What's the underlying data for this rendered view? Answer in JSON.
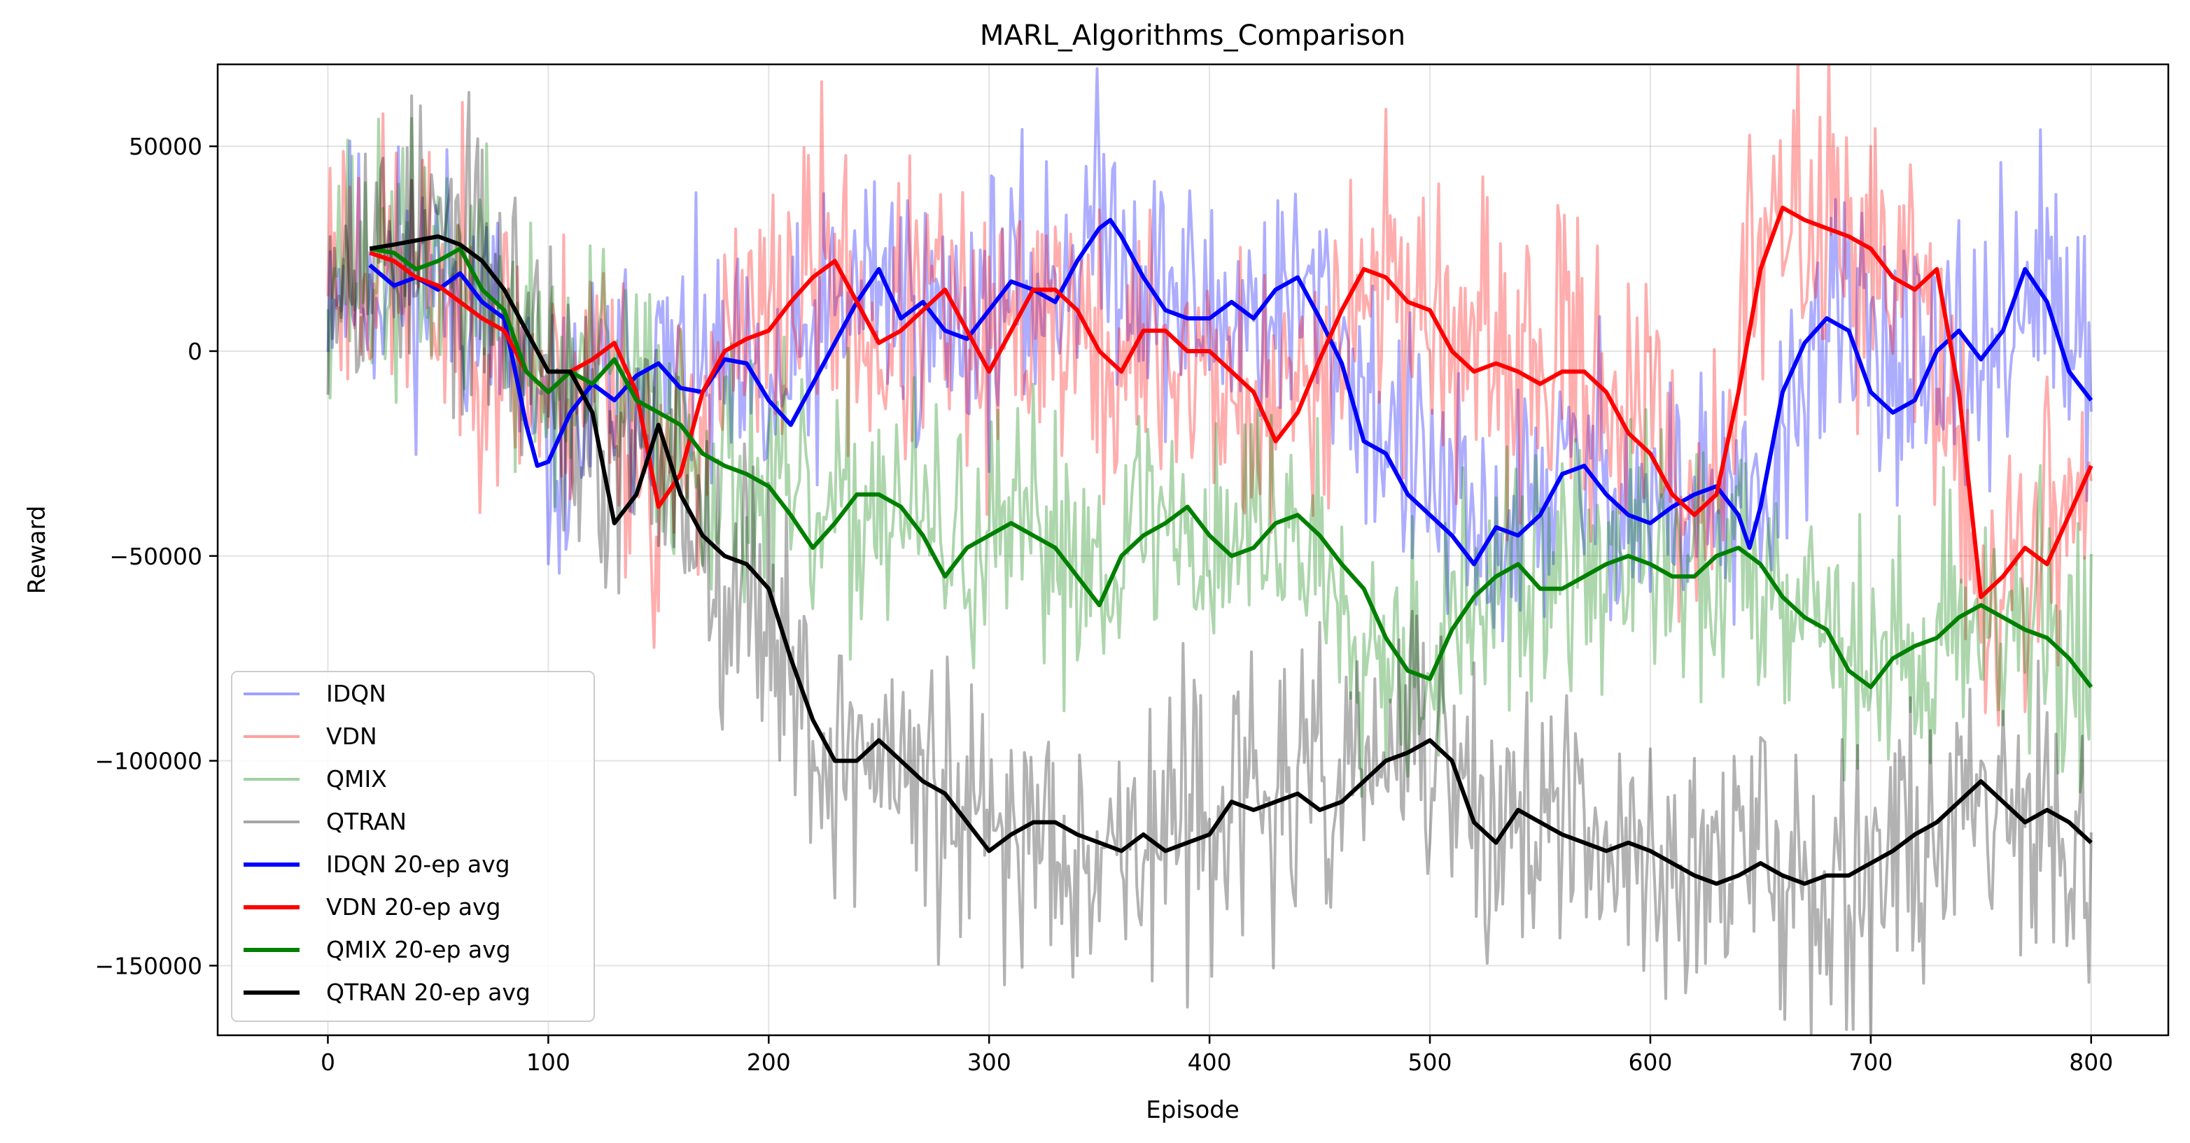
{
  "chart_data": {
    "type": "line",
    "title": "MARL_Algorithms_Comparison",
    "xlabel": "Episode",
    "ylabel": "Reward",
    "xlim": [
      -50,
      835
    ],
    "ylim": [
      -167000,
      70000
    ],
    "xticks": [
      0,
      100,
      200,
      300,
      400,
      500,
      600,
      700,
      800
    ],
    "yticks": [
      50000,
      0,
      -50000,
      -100000,
      -150000
    ],
    "ytick_labels": [
      "50000",
      "0",
      "−50000",
      "−100000",
      "−150000"
    ],
    "grid": true,
    "legend_position": "lower-left",
    "series": [
      {
        "name": "IDQN",
        "color": "#0000ff",
        "alpha": 0.32,
        "width": 4,
        "kind": "raw",
        "x": [
          0,
          25,
          50,
          75,
          100,
          125,
          150,
          175,
          200,
          225,
          250,
          275,
          300,
          325,
          350,
          375,
          400,
          425,
          450,
          475,
          500,
          525,
          550,
          575,
          600,
          625,
          650,
          675,
          700,
          725,
          750,
          775,
          800
        ],
        "y": [
          20000,
          18000,
          19000,
          8000,
          -28000,
          -10000,
          -5000,
          -8000,
          -15000,
          5000,
          20000,
          5000,
          12000,
          15000,
          32000,
          15000,
          8000,
          10000,
          12000,
          -15000,
          -32000,
          -50000,
          -35000,
          -28000,
          -40000,
          -35000,
          -45000,
          5000,
          8000,
          -12000,
          -2000,
          20000,
          -10000
        ],
        "noise": 16000,
        "seed": 11
      },
      {
        "name": "VDN",
        "color": "#ff0000",
        "alpha": 0.32,
        "width": 4,
        "kind": "raw",
        "x": [
          0,
          25,
          50,
          75,
          100,
          125,
          150,
          175,
          200,
          225,
          250,
          275,
          300,
          325,
          350,
          375,
          400,
          425,
          450,
          475,
          500,
          525,
          550,
          575,
          600,
          625,
          650,
          675,
          700,
          725,
          750,
          775,
          800
        ],
        "y": [
          25000,
          20000,
          15000,
          5000,
          -10000,
          0,
          -38000,
          -5000,
          5000,
          22000,
          0,
          12000,
          -5000,
          15000,
          -5000,
          0,
          -5000,
          -20000,
          0,
          20000,
          10000,
          -5000,
          -5000,
          -5000,
          -20000,
          -40000,
          25000,
          35000,
          25000,
          10000,
          -60000,
          -50000,
          -28000
        ],
        "noise": 18000,
        "seed": 23
      },
      {
        "name": "QMIX",
        "color": "#008000",
        "alpha": 0.32,
        "width": 4,
        "kind": "raw",
        "x": [
          0,
          25,
          50,
          75,
          100,
          125,
          150,
          175,
          200,
          225,
          250,
          275,
          300,
          325,
          350,
          375,
          400,
          425,
          450,
          475,
          500,
          525,
          550,
          575,
          600,
          625,
          650,
          675,
          700,
          725,
          750,
          775,
          800
        ],
        "y": [
          25000,
          20000,
          22000,
          15000,
          -10000,
          -5000,
          -15000,
          -28000,
          -35000,
          -45000,
          -35000,
          -45000,
          -50000,
          -45000,
          -50000,
          -40000,
          -48000,
          -40000,
          -50000,
          -70000,
          -75000,
          -58000,
          -55000,
          -52000,
          -50000,
          -55000,
          -50000,
          -60000,
          -80000,
          -72000,
          -62000,
          -68000,
          -80000
        ],
        "noise": 16000,
        "seed": 37
      },
      {
        "name": "QTRAN",
        "color": "#000000",
        "alpha": 0.3,
        "width": 4,
        "kind": "raw",
        "x": [
          0,
          25,
          50,
          75,
          100,
          125,
          150,
          175,
          200,
          225,
          250,
          275,
          300,
          325,
          350,
          375,
          400,
          425,
          450,
          475,
          500,
          525,
          550,
          575,
          600,
          625,
          650,
          675,
          700,
          725,
          750,
          775,
          800
        ],
        "y": [
          25000,
          25000,
          28000,
          15000,
          0,
          -38000,
          -20000,
          -50000,
          -60000,
          -100000,
          -98000,
          -110000,
          -120000,
          -115000,
          -120000,
          -120000,
          -110000,
          -110000,
          -108000,
          -100000,
          -95000,
          -118000,
          -112000,
          -125000,
          -122000,
          -128000,
          -122000,
          -128000,
          -125000,
          -120000,
          -105000,
          -110000,
          -118000
        ],
        "noise": 17000,
        "seed": 53
      },
      {
        "name": "IDQN 20-ep avg",
        "color": "#0000ff",
        "alpha": 1,
        "width": 6,
        "kind": "avg",
        "x": [
          19,
          30,
          40,
          50,
          60,
          70,
          80,
          90,
          95,
          100,
          110,
          120,
          130,
          140,
          150,
          160,
          170,
          180,
          190,
          200,
          210,
          220,
          230,
          240,
          250,
          260,
          270,
          280,
          290,
          300,
          310,
          320,
          330,
          340,
          350,
          355,
          360,
          370,
          380,
          390,
          400,
          410,
          420,
          430,
          440,
          450,
          460,
          470,
          480,
          490,
          500,
          510,
          520,
          530,
          540,
          550,
          560,
          570,
          580,
          590,
          600,
          610,
          620,
          630,
          640,
          645,
          650,
          660,
          670,
          680,
          690,
          700,
          710,
          720,
          730,
          740,
          750,
          760,
          770,
          780,
          790,
          800
        ],
        "y": [
          21000,
          16000,
          18000,
          15000,
          19000,
          12000,
          8000,
          -18000,
          -28000,
          -27000,
          -15000,
          -8000,
          -12000,
          -6000,
          -3000,
          -9000,
          -10000,
          -2000,
          -3000,
          -12000,
          -18000,
          -8000,
          2000,
          12000,
          20000,
          8000,
          12000,
          5000,
          3000,
          10000,
          17000,
          15000,
          12000,
          22000,
          30000,
          32000,
          28000,
          18000,
          10000,
          8000,
          8000,
          12000,
          8000,
          15000,
          18000,
          8000,
          -3000,
          -22000,
          -25000,
          -35000,
          -40000,
          -45000,
          -52000,
          -43000,
          -45000,
          -40000,
          -30000,
          -28000,
          -35000,
          -40000,
          -42000,
          -38000,
          -35000,
          -33000,
          -40000,
          -48000,
          -38000,
          -10000,
          2000,
          8000,
          5000,
          -10000,
          -15000,
          -12000,
          0,
          5000,
          -2000,
          5000,
          20000,
          12000,
          -5000,
          -12000
        ]
      },
      {
        "name": "VDN 20-ep avg",
        "color": "#ff0000",
        "alpha": 1,
        "width": 6,
        "kind": "avg",
        "x": [
          19,
          30,
          40,
          50,
          60,
          70,
          80,
          90,
          100,
          110,
          120,
          130,
          140,
          150,
          160,
          170,
          180,
          190,
          200,
          210,
          220,
          230,
          240,
          250,
          260,
          270,
          280,
          290,
          300,
          310,
          320,
          330,
          340,
          350,
          360,
          370,
          380,
          390,
          400,
          410,
          420,
          430,
          440,
          450,
          460,
          470,
          480,
          490,
          500,
          510,
          520,
          530,
          540,
          550,
          560,
          570,
          580,
          590,
          600,
          610,
          620,
          630,
          640,
          650,
          660,
          670,
          680,
          690,
          700,
          710,
          720,
          730,
          740,
          750,
          760,
          770,
          780,
          790,
          800
        ],
        "y": [
          24000,
          22000,
          18000,
          16000,
          12000,
          8000,
          5000,
          -5000,
          -10000,
          -5000,
          -2000,
          2000,
          -10000,
          -38000,
          -30000,
          -10000,
          0,
          3000,
          5000,
          12000,
          18000,
          22000,
          12000,
          2000,
          5000,
          10000,
          15000,
          5000,
          -5000,
          5000,
          15000,
          15000,
          10000,
          0,
          -5000,
          5000,
          5000,
          0,
          0,
          -5000,
          -10000,
          -22000,
          -15000,
          -2000,
          10000,
          20000,
          18000,
          12000,
          10000,
          0,
          -5000,
          -3000,
          -5000,
          -8000,
          -5000,
          -5000,
          -10000,
          -20000,
          -25000,
          -35000,
          -40000,
          -35000,
          -10000,
          20000,
          35000,
          32000,
          30000,
          28000,
          25000,
          18000,
          15000,
          20000,
          -10000,
          -60000,
          -55000,
          -48000,
          -52000,
          -40000,
          -28000
        ]
      },
      {
        "name": "QMIX 20-ep avg",
        "color": "#008000",
        "alpha": 1,
        "width": 6,
        "kind": "avg",
        "x": [
          19,
          30,
          40,
          50,
          60,
          70,
          80,
          90,
          100,
          110,
          120,
          130,
          140,
          150,
          160,
          170,
          180,
          190,
          200,
          210,
          220,
          230,
          240,
          250,
          260,
          270,
          280,
          290,
          300,
          310,
          320,
          330,
          340,
          350,
          360,
          370,
          380,
          390,
          400,
          410,
          420,
          430,
          440,
          450,
          460,
          470,
          480,
          490,
          500,
          510,
          520,
          530,
          540,
          550,
          560,
          570,
          580,
          590,
          600,
          610,
          620,
          630,
          640,
          650,
          660,
          670,
          680,
          690,
          700,
          710,
          720,
          730,
          740,
          750,
          760,
          770,
          780,
          790,
          800
        ],
        "y": [
          25000,
          24000,
          20000,
          22000,
          25000,
          15000,
          10000,
          -5000,
          -10000,
          -5000,
          -8000,
          -2000,
          -12000,
          -15000,
          -18000,
          -25000,
          -28000,
          -30000,
          -33000,
          -40000,
          -48000,
          -42000,
          -35000,
          -35000,
          -38000,
          -45000,
          -55000,
          -48000,
          -45000,
          -42000,
          -45000,
          -48000,
          -55000,
          -62000,
          -50000,
          -45000,
          -42000,
          -38000,
          -45000,
          -50000,
          -48000,
          -42000,
          -40000,
          -45000,
          -52000,
          -58000,
          -70000,
          -78000,
          -80000,
          -68000,
          -60000,
          -55000,
          -52000,
          -58000,
          -58000,
          -55000,
          -52000,
          -50000,
          -52000,
          -55000,
          -55000,
          -50000,
          -48000,
          -52000,
          -60000,
          -65000,
          -68000,
          -78000,
          -82000,
          -75000,
          -72000,
          -70000,
          -65000,
          -62000,
          -65000,
          -68000,
          -70000,
          -75000,
          -82000
        ]
      },
      {
        "name": "QTRAN 20-ep avg",
        "color": "#000000",
        "alpha": 1,
        "width": 6,
        "kind": "avg",
        "x": [
          19,
          30,
          40,
          50,
          60,
          70,
          80,
          90,
          100,
          110,
          120,
          130,
          140,
          150,
          160,
          170,
          180,
          190,
          200,
          210,
          220,
          230,
          240,
          250,
          260,
          270,
          280,
          290,
          300,
          310,
          320,
          330,
          340,
          350,
          360,
          370,
          380,
          390,
          400,
          410,
          420,
          430,
          440,
          450,
          460,
          470,
          480,
          490,
          500,
          510,
          520,
          530,
          540,
          550,
          560,
          570,
          580,
          590,
          600,
          610,
          620,
          630,
          640,
          650,
          660,
          670,
          680,
          690,
          700,
          710,
          720,
          730,
          740,
          750,
          760,
          770,
          780,
          790,
          800
        ],
        "y": [
          25000,
          26000,
          27000,
          28000,
          26000,
          22000,
          15000,
          5000,
          -5000,
          -5000,
          -15000,
          -42000,
          -35000,
          -18000,
          -35000,
          -45000,
          -50000,
          -52000,
          -58000,
          -75000,
          -90000,
          -100000,
          -100000,
          -95000,
          -100000,
          -105000,
          -108000,
          -115000,
          -122000,
          -118000,
          -115000,
          -115000,
          -118000,
          -120000,
          -122000,
          -118000,
          -122000,
          -120000,
          -118000,
          -110000,
          -112000,
          -110000,
          -108000,
          -112000,
          -110000,
          -105000,
          -100000,
          -98000,
          -95000,
          -100000,
          -115000,
          -120000,
          -112000,
          -115000,
          -118000,
          -120000,
          -122000,
          -120000,
          -122000,
          -125000,
          -128000,
          -130000,
          -128000,
          -125000,
          -128000,
          -130000,
          -128000,
          -128000,
          -125000,
          -122000,
          -118000,
          -115000,
          -110000,
          -105000,
          -110000,
          -115000,
          -112000,
          -115000,
          -120000
        ]
      }
    ]
  }
}
